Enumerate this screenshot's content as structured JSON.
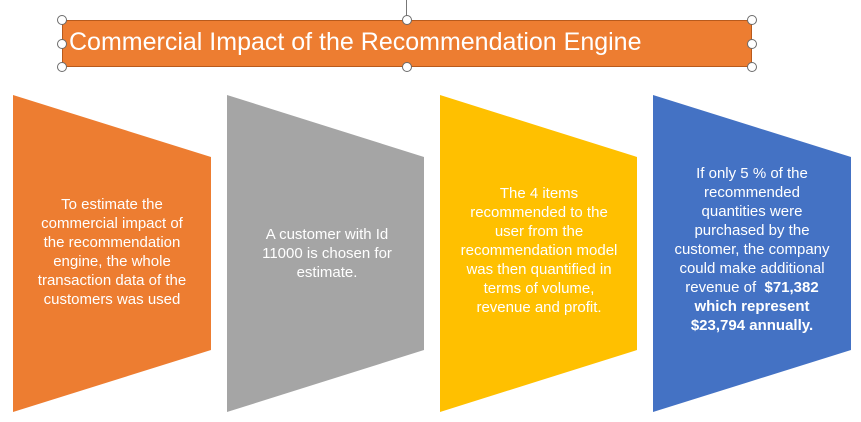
{
  "title": "Commercial Impact of the Recommendation Engine",
  "colors": {
    "orange": "#ED7D31",
    "gray": "#A5A5A5",
    "gold": "#FFC000",
    "blue": "#4472C4"
  },
  "panels": [
    {
      "name": "orange",
      "lines": [
        "To estimate the",
        "commercial impact of",
        "the recommendation",
        "engine, the whole",
        "transaction data of the",
        "customers was used"
      ]
    },
    {
      "name": "gray",
      "lines": [
        "A customer with Id",
        "11000 is chosen for",
        "estimate."
      ]
    },
    {
      "name": "gold",
      "lines": [
        "The 4  items",
        "recommended to the",
        "user from the",
        "recommendation model",
        "was then quantified in",
        "terms of volume,",
        "revenue and profit."
      ]
    },
    {
      "name": "blue",
      "lines": [
        "If only 5 % of the",
        "recommended",
        "quantities were",
        "purchased by the",
        "customer, the company",
        "could make additional"
      ],
      "revenue_prefix": "revenue of  ",
      "revenue_amount": "$71,382",
      "bold_lines": [
        "which represent",
        "$23,794 annually."
      ]
    }
  ]
}
